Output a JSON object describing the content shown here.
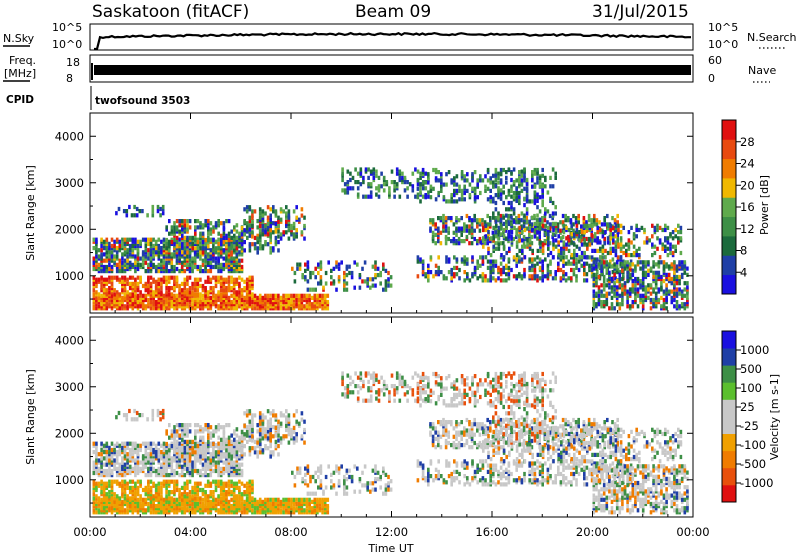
{
  "header": {
    "station": "Saskatoon (fitACF)",
    "beam": "Beam 09",
    "date": "31/Jul/2015"
  },
  "top_panels": {
    "nsky_label": "N.Sky",
    "nsky_ticks": [
      "10^5",
      "10^0"
    ],
    "nsearch_label": "N.Search",
    "nsearch_ticks": [
      "10^5",
      "10^0"
    ],
    "freq_label_1": "Freq.",
    "freq_label_2": "[MHz]",
    "freq_ticks": [
      "18",
      "8"
    ],
    "nave_label": "Nave",
    "nave_ticks": [
      "60",
      "0"
    ],
    "cpid_label": "CPID",
    "cpid_value": "twofsound 3503"
  },
  "colors": {
    "power_scale": [
      "#1a10e0",
      "#1f3fa6",
      "#1b6a3c",
      "#3d8f46",
      "#5faa4c",
      "#f0b800",
      "#f07c00",
      "#e84a10",
      "#e01010"
    ],
    "velocity_scale": [
      "#e01010",
      "#e8500c",
      "#f07c00",
      "#f0a000",
      "#c8c8c8",
      "#c8c8c8",
      "#5bbf2e",
      "#3d8f46",
      "#1f3fa6",
      "#1a10e0"
    ]
  },
  "chart_data": [
    {
      "type": "heatmap",
      "title": "",
      "xlabel": "",
      "ylabel": "Slant Range [km]",
      "x_ticks": [
        "00:00",
        "04:00",
        "08:00",
        "12:00",
        "16:00",
        "20:00",
        "00:00"
      ],
      "y_ticks": [
        "1000",
        "2000",
        "3000",
        "4000"
      ],
      "ylim": [
        200,
        4500
      ],
      "colorbar_label": "Power [dB]",
      "colorbar_ticks": [
        "4",
        "8",
        "12",
        "16",
        "20",
        "24",
        "28"
      ],
      "colorbar_range": [
        0,
        30
      ]
    },
    {
      "type": "heatmap",
      "title": "",
      "xlabel": "Time UT",
      "ylabel": "Slant Range [km]",
      "x_ticks": [
        "00:00",
        "04:00",
        "08:00",
        "12:00",
        "16:00",
        "20:00",
        "00:00"
      ],
      "y_ticks": [
        "1000",
        "2000",
        "3000",
        "4000"
      ],
      "ylim": [
        200,
        4500
      ],
      "colorbar_label": "Velocity [m s-1]",
      "colorbar_ticks": [
        "-1000",
        "-500",
        "-100",
        "-25",
        "25",
        "100",
        "500",
        "1000"
      ]
    }
  ]
}
